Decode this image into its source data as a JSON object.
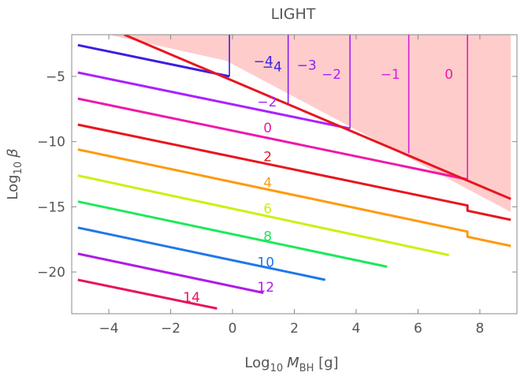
{
  "chart_data": {
    "type": "line",
    "title": "LIGHT",
    "xlabel": {
      "prefix": "Log",
      "base": "10",
      "var": "M",
      "sub": "BH",
      "unit": " [g]"
    },
    "ylabel": {
      "prefix": "Log",
      "base": "10",
      "var": "β"
    },
    "xlim": [
      -5.2,
      9.2
    ],
    "ylim": [
      -23.2,
      -1.8
    ],
    "xticks": [
      -4,
      -2,
      0,
      2,
      4,
      6,
      8
    ],
    "yticks": [
      -5,
      -10,
      -15,
      -20
    ],
    "xtick_labels": [
      "−4",
      "−2",
      "0",
      "2",
      "4",
      "6",
      "8"
    ],
    "ytick_labels": [
      "−5",
      "−10",
      "−15",
      "−20"
    ],
    "grid": false,
    "shaded_region": {
      "color": "#ffcccc",
      "polygon": [
        [
          -5.2,
          -1.8
        ],
        [
          9.0,
          -1.8
        ],
        [
          9.0,
          -15.4
        ],
        [
          -0.2,
          -3.8
        ],
        [
          -4.0,
          -1.8
        ]
      ]
    },
    "boundary": {
      "color": "#e8161e",
      "points": [
        [
          -3.5,
          -1.8
        ],
        [
          9.0,
          -14.4
        ]
      ]
    },
    "series": [
      {
        "name": "-4",
        "label": "−4",
        "color": "#3a1fe0",
        "points": [
          [
            -5.0,
            -2.6
          ],
          [
            -0.1,
            -5.0
          ]
        ],
        "label_at": [
          1.6,
          -4.6
        ],
        "anchor": "end"
      },
      {
        "name": "-2",
        "label": "−2",
        "color": "#aa22ff",
        "points": [
          [
            -5.0,
            -4.7
          ],
          [
            3.8,
            -9.0
          ]
        ],
        "label_at": [
          0.8,
          -7.3
        ],
        "anchor": "start"
      },
      {
        "name": "0",
        "label": "0",
        "color": "#ee1aa8",
        "points": [
          [
            -5.0,
            -6.7
          ],
          [
            7.6,
            -12.9
          ]
        ],
        "label_at": [
          1.0,
          -9.3
        ],
        "anchor": "start"
      },
      {
        "name": "2",
        "label": "2",
        "color": "#e8161e",
        "points": [
          [
            -5.0,
            -8.7
          ],
          [
            7.6,
            -14.9
          ],
          [
            7.6,
            -15.3
          ],
          [
            9.0,
            -16.0
          ]
        ],
        "label_at": [
          1.0,
          -11.5
        ],
        "anchor": "start"
      },
      {
        "name": "4",
        "label": "4",
        "color": "#ff9a0e",
        "points": [
          [
            -5.0,
            -10.6
          ],
          [
            7.6,
            -16.9
          ],
          [
            7.6,
            -17.3
          ],
          [
            9.0,
            -18.0
          ]
        ],
        "label_at": [
          1.0,
          -13.5
        ],
        "anchor": "start"
      },
      {
        "name": "6",
        "label": "6",
        "color": "#ccf011",
        "points": [
          [
            -5.0,
            -12.6
          ],
          [
            7.0,
            -18.7
          ]
        ],
        "label_at": [
          1.0,
          -15.5
        ],
        "anchor": "start"
      },
      {
        "name": "8",
        "label": "8",
        "color": "#1ee85c",
        "points": [
          [
            -5.0,
            -14.6
          ],
          [
            5.0,
            -19.6
          ]
        ],
        "label_at": [
          1.0,
          -17.6
        ],
        "anchor": "start"
      },
      {
        "name": "10",
        "label": "10",
        "color": "#1f78e8",
        "points": [
          [
            -5.0,
            -16.6
          ],
          [
            3.0,
            -20.6
          ]
        ],
        "label_at": [
          0.8,
          -19.6
        ],
        "anchor": "start"
      },
      {
        "name": "12",
        "label": "12",
        "color": "#b01ce6",
        "points": [
          [
            -5.0,
            -18.6
          ],
          [
            1.0,
            -21.6
          ]
        ],
        "label_at": [
          0.8,
          -21.5
        ],
        "anchor": "start"
      },
      {
        "name": "14",
        "label": "14",
        "color": "#e8145a",
        "points": [
          [
            -5.0,
            -20.6
          ],
          [
            -0.5,
            -22.8
          ]
        ],
        "label_at": [
          -1.6,
          -22.3
        ],
        "anchor": "start"
      }
    ],
    "vertical_markers": [
      {
        "name": "v-4",
        "label": "−4",
        "color": "#3a1fe0",
        "x": -0.1,
        "y_top": -1.8,
        "y_bottom": -5.0,
        "label_at": [
          1.0,
          -4.2
        ],
        "anchor": "middle"
      },
      {
        "name": "v-3",
        "label": "−3",
        "color": "#8a22ee",
        "x": 1.8,
        "y_top": -1.8,
        "y_bottom": -7.2,
        "label_at": [
          2.4,
          -4.5
        ],
        "anchor": "middle"
      },
      {
        "name": "v-2",
        "label": "−2",
        "color": "#aa22ff",
        "x": 3.8,
        "y_top": -1.8,
        "y_bottom": -9.0,
        "label_at": [
          3.2,
          -5.2
        ],
        "anchor": "middle"
      },
      {
        "name": "v-1",
        "label": "−1",
        "color": "#d81fd0",
        "x": 5.7,
        "y_top": -1.8,
        "y_bottom": -10.9,
        "label_at": [
          5.1,
          -5.2
        ],
        "anchor": "middle"
      },
      {
        "name": "v0",
        "label": "0",
        "color": "#ee1aa8",
        "x": 7.6,
        "y_top": -1.8,
        "y_bottom": -12.9,
        "label_at": [
          7.0,
          -5.2
        ],
        "anchor": "middle"
      }
    ]
  }
}
